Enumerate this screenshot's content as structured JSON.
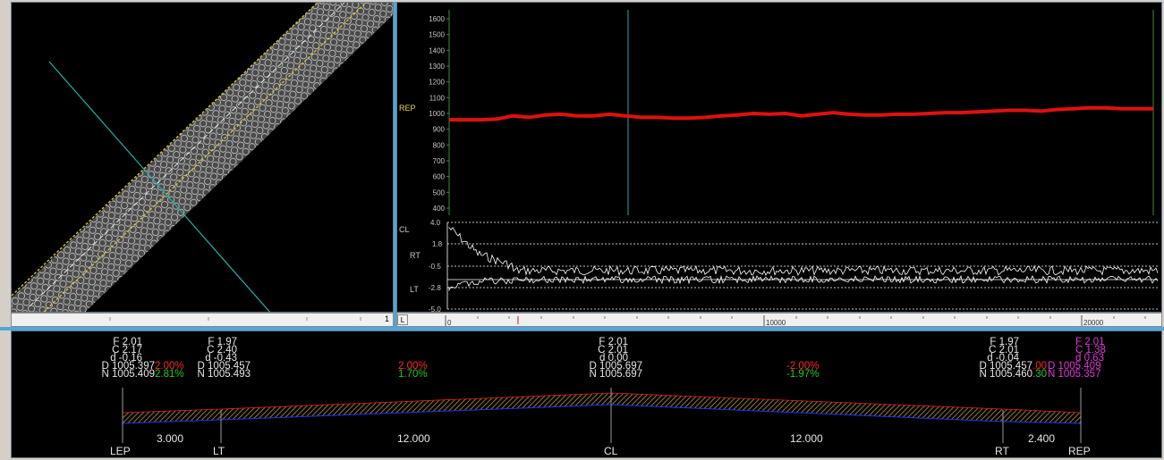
{
  "plan": {
    "scroll_label": "1"
  },
  "profile": {
    "ylabel": "REP",
    "yticks": [
      "1600",
      "1500",
      "1400",
      "1300",
      "1200",
      "1100",
      "1000",
      "900",
      "800",
      "700",
      "600",
      "500",
      "400"
    ],
    "deviation_labels": {
      "cl": "CL",
      "rt": "RT",
      "lt": "LT"
    },
    "deviation_ticks": [
      "4.0",
      "1.8",
      "-0.5",
      "-2.8",
      "-5.0"
    ],
    "station_ticks": [
      "0",
      "10000",
      "20000"
    ],
    "scroll_button": "L",
    "colors": {
      "profile_line": "#e01010",
      "cursor": "#2aa0b0",
      "axis_text": "#c8c8c8",
      "label_yellow": "#e8d44a"
    },
    "chart_data": {
      "type": "line",
      "title": "",
      "xlabel": "",
      "ylabel": "REP",
      "ylim": [
        350,
        1650
      ],
      "xlim": [
        0,
        22000
      ],
      "series": [
        {
          "x": [
            0,
            1000,
            1500,
            2000,
            2500,
            3000,
            3500,
            4000,
            4500,
            5000,
            5500,
            6000,
            6500,
            7000,
            7500,
            8000,
            8500,
            9000,
            9500,
            10000,
            10500,
            11000,
            11500,
            12000,
            12500,
            13000,
            13500,
            14000,
            14500,
            15000,
            15500,
            16000,
            16500,
            17000,
            17500,
            18000,
            18500,
            19000,
            19500,
            20000,
            20500,
            21000,
            21500,
            22000
          ],
          "y": [
            960,
            960,
            965,
            985,
            975,
            990,
            995,
            985,
            985,
            995,
            985,
            975,
            975,
            970,
            970,
            975,
            985,
            990,
            1000,
            995,
            1000,
            985,
            995,
            1005,
            995,
            990,
            990,
            995,
            995,
            1000,
            1005,
            1005,
            1010,
            1015,
            1020,
            1020,
            1015,
            1025,
            1030,
            1035,
            1035,
            1030,
            1030,
            1030
          ]
        }
      ]
    }
  },
  "section": {
    "points": [
      {
        "id": "LEP",
        "lines": [
          "F 2.01",
          "C 2.17",
          "d -0.16",
          "D 1005.397",
          "N 1005.409"
        ]
      },
      {
        "id": "LT",
        "lines": [
          "F 1.97",
          "C 2.40",
          "d -0.43",
          "D 1005.457",
          "N 1005.493"
        ]
      },
      {
        "id": "CL",
        "lines": [
          "F 2.01",
          "C 2.01",
          "d 0.00",
          "D 1005.697",
          "N 1005.697"
        ]
      },
      {
        "id": "RT",
        "lines": [
          "F 1.97",
          "C 2.01",
          "d -0.04",
          "D 1005.457",
          "N 1005.460"
        ]
      },
      {
        "id": "REP",
        "lines": [
          "F 2.01",
          "C 1.38",
          "d 0.63",
          "D 1005.409",
          "N 1005.357"
        ]
      }
    ],
    "slopes": {
      "lep_design": "2.00%",
      "lep_actual": "2.81%",
      "left_design": "2.00%",
      "left_actual": "1.70%",
      "right_design": "-2.00%",
      "right_actual": "-1.97%",
      "rep_design": ".00",
      "rep_actual": ".30"
    },
    "widths": {
      "lep_lt": "3.000",
      "lt_cl": "12.000",
      "cl_rt": "12.000",
      "rt_rep": "2.400"
    },
    "colors": {
      "text": "#e6e6e6",
      "design_slope": "#ff2a2a",
      "actual_slope": "#22c822",
      "highlight": "#e23ad8",
      "hatch": "#b8963c",
      "bottom_line": "#2030ff",
      "top_line": "#e02020"
    }
  }
}
